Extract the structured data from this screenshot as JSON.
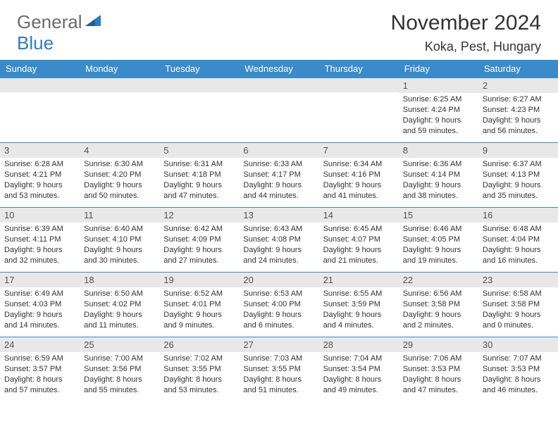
{
  "logo": {
    "general": "General",
    "blue": "Blue"
  },
  "title": "November 2024",
  "location": "Koka, Pest, Hungary",
  "colors": {
    "header_bg": "#3a8bc9",
    "header_fg": "#ffffff",
    "daynum_bg": "#e8e8e8",
    "border": "#3a8bc9",
    "logo_gray": "#6b6b6b",
    "logo_blue": "#2a7fbf"
  },
  "weekdays": [
    "Sunday",
    "Monday",
    "Tuesday",
    "Wednesday",
    "Thursday",
    "Friday",
    "Saturday"
  ],
  "weeks": [
    [
      {
        "n": "",
        "sr": "",
        "ss": "",
        "dl": ""
      },
      {
        "n": "",
        "sr": "",
        "ss": "",
        "dl": ""
      },
      {
        "n": "",
        "sr": "",
        "ss": "",
        "dl": ""
      },
      {
        "n": "",
        "sr": "",
        "ss": "",
        "dl": ""
      },
      {
        "n": "",
        "sr": "",
        "ss": "",
        "dl": ""
      },
      {
        "n": "1",
        "sr": "Sunrise: 6:25 AM",
        "ss": "Sunset: 4:24 PM",
        "dl": "Daylight: 9 hours and 59 minutes."
      },
      {
        "n": "2",
        "sr": "Sunrise: 6:27 AM",
        "ss": "Sunset: 4:23 PM",
        "dl": "Daylight: 9 hours and 56 minutes."
      }
    ],
    [
      {
        "n": "3",
        "sr": "Sunrise: 6:28 AM",
        "ss": "Sunset: 4:21 PM",
        "dl": "Daylight: 9 hours and 53 minutes."
      },
      {
        "n": "4",
        "sr": "Sunrise: 6:30 AM",
        "ss": "Sunset: 4:20 PM",
        "dl": "Daylight: 9 hours and 50 minutes."
      },
      {
        "n": "5",
        "sr": "Sunrise: 6:31 AM",
        "ss": "Sunset: 4:18 PM",
        "dl": "Daylight: 9 hours and 47 minutes."
      },
      {
        "n": "6",
        "sr": "Sunrise: 6:33 AM",
        "ss": "Sunset: 4:17 PM",
        "dl": "Daylight: 9 hours and 44 minutes."
      },
      {
        "n": "7",
        "sr": "Sunrise: 6:34 AM",
        "ss": "Sunset: 4:16 PM",
        "dl": "Daylight: 9 hours and 41 minutes."
      },
      {
        "n": "8",
        "sr": "Sunrise: 6:36 AM",
        "ss": "Sunset: 4:14 PM",
        "dl": "Daylight: 9 hours and 38 minutes."
      },
      {
        "n": "9",
        "sr": "Sunrise: 6:37 AM",
        "ss": "Sunset: 4:13 PM",
        "dl": "Daylight: 9 hours and 35 minutes."
      }
    ],
    [
      {
        "n": "10",
        "sr": "Sunrise: 6:39 AM",
        "ss": "Sunset: 4:11 PM",
        "dl": "Daylight: 9 hours and 32 minutes."
      },
      {
        "n": "11",
        "sr": "Sunrise: 6:40 AM",
        "ss": "Sunset: 4:10 PM",
        "dl": "Daylight: 9 hours and 30 minutes."
      },
      {
        "n": "12",
        "sr": "Sunrise: 6:42 AM",
        "ss": "Sunset: 4:09 PM",
        "dl": "Daylight: 9 hours and 27 minutes."
      },
      {
        "n": "13",
        "sr": "Sunrise: 6:43 AM",
        "ss": "Sunset: 4:08 PM",
        "dl": "Daylight: 9 hours and 24 minutes."
      },
      {
        "n": "14",
        "sr": "Sunrise: 6:45 AM",
        "ss": "Sunset: 4:07 PM",
        "dl": "Daylight: 9 hours and 21 minutes."
      },
      {
        "n": "15",
        "sr": "Sunrise: 6:46 AM",
        "ss": "Sunset: 4:05 PM",
        "dl": "Daylight: 9 hours and 19 minutes."
      },
      {
        "n": "16",
        "sr": "Sunrise: 6:48 AM",
        "ss": "Sunset: 4:04 PM",
        "dl": "Daylight: 9 hours and 16 minutes."
      }
    ],
    [
      {
        "n": "17",
        "sr": "Sunrise: 6:49 AM",
        "ss": "Sunset: 4:03 PM",
        "dl": "Daylight: 9 hours and 14 minutes."
      },
      {
        "n": "18",
        "sr": "Sunrise: 6:50 AM",
        "ss": "Sunset: 4:02 PM",
        "dl": "Daylight: 9 hours and 11 minutes."
      },
      {
        "n": "19",
        "sr": "Sunrise: 6:52 AM",
        "ss": "Sunset: 4:01 PM",
        "dl": "Daylight: 9 hours and 9 minutes."
      },
      {
        "n": "20",
        "sr": "Sunrise: 6:53 AM",
        "ss": "Sunset: 4:00 PM",
        "dl": "Daylight: 9 hours and 6 minutes."
      },
      {
        "n": "21",
        "sr": "Sunrise: 6:55 AM",
        "ss": "Sunset: 3:59 PM",
        "dl": "Daylight: 9 hours and 4 minutes."
      },
      {
        "n": "22",
        "sr": "Sunrise: 6:56 AM",
        "ss": "Sunset: 3:58 PM",
        "dl": "Daylight: 9 hours and 2 minutes."
      },
      {
        "n": "23",
        "sr": "Sunrise: 6:58 AM",
        "ss": "Sunset: 3:58 PM",
        "dl": "Daylight: 9 hours and 0 minutes."
      }
    ],
    [
      {
        "n": "24",
        "sr": "Sunrise: 6:59 AM",
        "ss": "Sunset: 3:57 PM",
        "dl": "Daylight: 8 hours and 57 minutes."
      },
      {
        "n": "25",
        "sr": "Sunrise: 7:00 AM",
        "ss": "Sunset: 3:56 PM",
        "dl": "Daylight: 8 hours and 55 minutes."
      },
      {
        "n": "26",
        "sr": "Sunrise: 7:02 AM",
        "ss": "Sunset: 3:55 PM",
        "dl": "Daylight: 8 hours and 53 minutes."
      },
      {
        "n": "27",
        "sr": "Sunrise: 7:03 AM",
        "ss": "Sunset: 3:55 PM",
        "dl": "Daylight: 8 hours and 51 minutes."
      },
      {
        "n": "28",
        "sr": "Sunrise: 7:04 AM",
        "ss": "Sunset: 3:54 PM",
        "dl": "Daylight: 8 hours and 49 minutes."
      },
      {
        "n": "29",
        "sr": "Sunrise: 7:06 AM",
        "ss": "Sunset: 3:53 PM",
        "dl": "Daylight: 8 hours and 47 minutes."
      },
      {
        "n": "30",
        "sr": "Sunrise: 7:07 AM",
        "ss": "Sunset: 3:53 PM",
        "dl": "Daylight: 8 hours and 46 minutes."
      }
    ]
  ]
}
